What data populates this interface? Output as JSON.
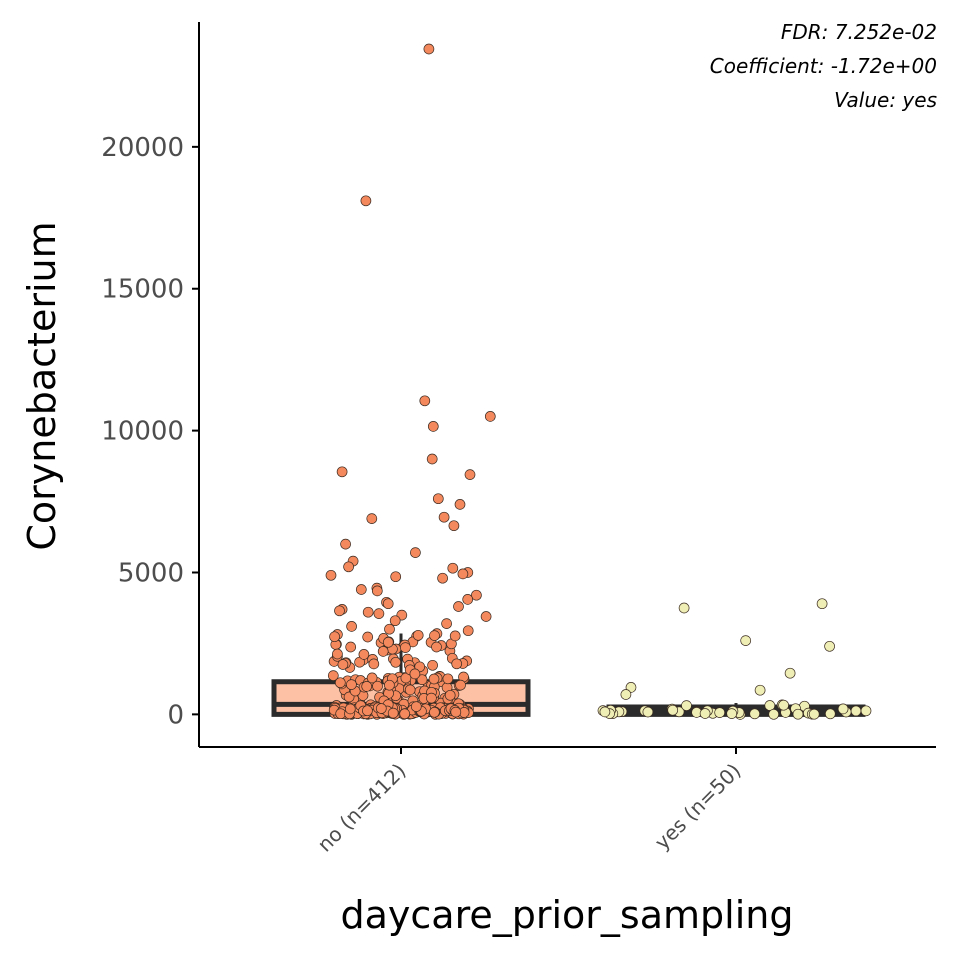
{
  "chart_data": {
    "type": "box",
    "xlabel": "daycare_prior_sampling",
    "ylabel": "Corynebacterium",
    "categories": [
      "no (n=412)",
      "yes (n=50)"
    ],
    "yticks": [
      0,
      5000,
      10000,
      15000,
      20000
    ],
    "ylim": [
      -1150,
      24400
    ],
    "annotations": [
      "FDR: 7.252e-02",
      "Coefficient: -1.72e+00",
      "Value: yes"
    ],
    "grid": false,
    "legend": "none",
    "colors": {
      "no_box_fill": "#fdc2a6",
      "no_point_fill": "#f4895e",
      "yes_box_fill": "#f5f5c8",
      "yes_point_fill": "#efefb5",
      "box_stroke": "#2b2b2b",
      "axis": "#000000"
    },
    "boxes": [
      {
        "category": "no (n=412)",
        "q1": 0,
        "median": 350,
        "q3": 1150,
        "whisker_low": 0,
        "whisker_high": 2850
      },
      {
        "category": "yes (n=50)",
        "q1": 0,
        "median": 120,
        "q3": 260,
        "whisker_low": 0,
        "whisker_high": 400
      }
    ],
    "outliers": {
      "no (n=412)": [
        23450,
        18100,
        11050,
        10500,
        10150,
        9000,
        8550,
        8450,
        7600,
        7400,
        6950,
        6900,
        6650,
        6000,
        5700,
        5400,
        5200,
        5150,
        5000,
        4950,
        4900,
        4850,
        4800,
        4450,
        4400,
        4350,
        4200,
        4050,
        3950,
        3900,
        3800,
        3700,
        3650,
        3600,
        3550,
        3500,
        3450,
        3300,
        3200,
        3100,
        3000,
        2950
      ],
      "yes (n=50)": [
        3900,
        3750,
        2600,
        2400,
        1450,
        950,
        850,
        700
      ]
    }
  }
}
